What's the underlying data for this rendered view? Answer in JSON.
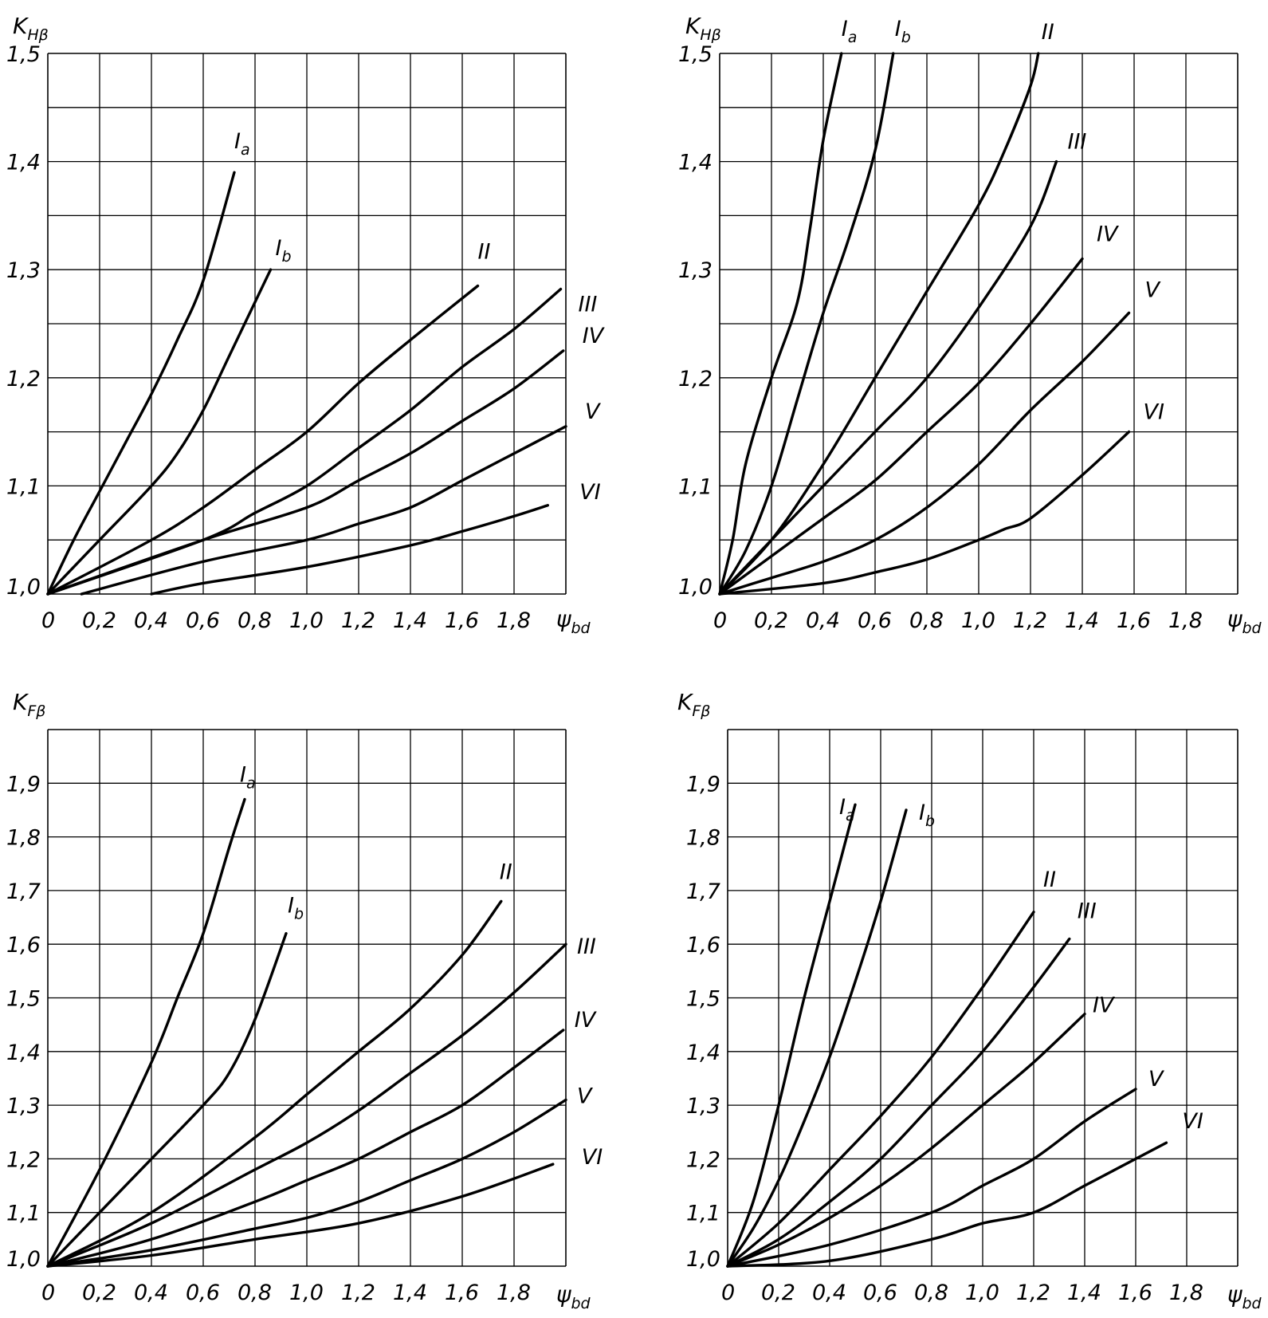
{
  "chart_data": [
    {
      "type": "line",
      "ylabel": {
        "main": "K",
        "sub": "Hβ"
      },
      "xlabel": {
        "main": "ψ",
        "sub": "bd"
      },
      "xticks": [
        "0",
        "0,2",
        "0,4",
        "0,6",
        "0,8",
        "1,0",
        "1,2",
        "1,4",
        "1,6",
        "1,8"
      ],
      "yticks": [
        "1,0",
        "1,1",
        "1,2",
        "1,3",
        "1,4",
        "1,5"
      ],
      "xlim": [
        0,
        2.0
      ],
      "ylim": [
        1.0,
        1.5
      ],
      "grid": true,
      "series": [
        {
          "name": "I",
          "sub": "a",
          "x": [
            0,
            0.1,
            0.2,
            0.3,
            0.4,
            0.5,
            0.6,
            0.72
          ],
          "y": [
            1.0,
            1.05,
            1.095,
            1.14,
            1.185,
            1.235,
            1.29,
            1.39
          ]
        },
        {
          "name": "I",
          "sub": "b",
          "x": [
            0,
            0.2,
            0.4,
            0.5,
            0.6,
            0.7,
            0.86
          ],
          "y": [
            1.0,
            1.05,
            1.1,
            1.13,
            1.17,
            1.22,
            1.3
          ]
        },
        {
          "name": "II",
          "x": [
            0,
            0.4,
            0.6,
            0.8,
            1.0,
            1.2,
            1.4,
            1.66
          ],
          "y": [
            1.0,
            1.05,
            1.08,
            1.115,
            1.15,
            1.195,
            1.235,
            1.285
          ]
        },
        {
          "name": "III",
          "x": [
            0,
            0.6,
            0.8,
            1.0,
            1.2,
            1.4,
            1.6,
            1.8,
            1.98
          ],
          "y": [
            1.0,
            1.05,
            1.075,
            1.1,
            1.135,
            1.17,
            1.21,
            1.245,
            1.282
          ]
        },
        {
          "name": "IV",
          "x": [
            0,
            0.6,
            1.0,
            1.2,
            1.4,
            1.6,
            1.8,
            1.99
          ],
          "y": [
            1.0,
            1.05,
            1.08,
            1.105,
            1.13,
            1.16,
            1.19,
            1.225
          ]
        },
        {
          "name": "V",
          "x": [
            0.13,
            0.6,
            1.0,
            1.2,
            1.4,
            1.6,
            1.8,
            2.0
          ],
          "y": [
            1.0,
            1.03,
            1.05,
            1.065,
            1.08,
            1.105,
            1.13,
            1.155
          ]
        },
        {
          "name": "VI",
          "x": [
            0.4,
            0.6,
            1.0,
            1.4,
            1.6,
            1.8,
            1.93
          ],
          "y": [
            1.0,
            1.01,
            1.025,
            1.045,
            1.058,
            1.072,
            1.082
          ]
        }
      ]
    },
    {
      "type": "line",
      "ylabel": {
        "main": "K",
        "sub": "Hβ"
      },
      "xlabel": {
        "main": "ψ",
        "sub": "bd"
      },
      "xticks": [
        "0",
        "0,2",
        "0,4",
        "0,6",
        "0,8",
        "1,0",
        "1,2",
        "1,4",
        "1,6",
        "1,8"
      ],
      "yticks": [
        "1,0",
        "1,1",
        "1,2",
        "1,3",
        "1,4",
        "1,5"
      ],
      "xlim": [
        0,
        2.0
      ],
      "ylim": [
        1.0,
        1.5
      ],
      "grid": true,
      "series": [
        {
          "name": "I",
          "sub": "a",
          "x": [
            0,
            0.05,
            0.1,
            0.2,
            0.3,
            0.35,
            0.4,
            0.47
          ],
          "y": [
            1.0,
            1.05,
            1.12,
            1.2,
            1.27,
            1.34,
            1.42,
            1.5
          ]
        },
        {
          "name": "I",
          "sub": "b",
          "x": [
            0,
            0.1,
            0.2,
            0.3,
            0.4,
            0.5,
            0.6,
            0.67
          ],
          "y": [
            1.0,
            1.04,
            1.1,
            1.18,
            1.26,
            1.33,
            1.41,
            1.5
          ]
        },
        {
          "name": "II",
          "x": [
            0,
            0.2,
            0.4,
            0.6,
            0.8,
            1.0,
            1.1,
            1.2,
            1.23
          ],
          "y": [
            1.0,
            1.05,
            1.12,
            1.2,
            1.28,
            1.36,
            1.41,
            1.47,
            1.5
          ]
        },
        {
          "name": "III",
          "x": [
            0,
            0.2,
            0.4,
            0.6,
            0.8,
            1.0,
            1.2,
            1.3
          ],
          "y": [
            1.0,
            1.05,
            1.1,
            1.15,
            1.2,
            1.265,
            1.34,
            1.4
          ]
        },
        {
          "name": "IV",
          "x": [
            0,
            0.2,
            0.4,
            0.6,
            0.8,
            1.0,
            1.2,
            1.4
          ],
          "y": [
            1.0,
            1.035,
            1.07,
            1.105,
            1.15,
            1.195,
            1.25,
            1.31
          ]
        },
        {
          "name": "V",
          "x": [
            0,
            0.2,
            0.4,
            0.6,
            0.8,
            1.0,
            1.2,
            1.4,
            1.58
          ],
          "y": [
            1.0,
            1.015,
            1.03,
            1.05,
            1.08,
            1.12,
            1.17,
            1.215,
            1.26
          ]
        },
        {
          "name": "VI",
          "x": [
            0,
            0.4,
            0.6,
            0.8,
            1.0,
            1.1,
            1.2,
            1.4,
            1.58
          ],
          "y": [
            1.0,
            1.01,
            1.02,
            1.032,
            1.05,
            1.06,
            1.07,
            1.11,
            1.15
          ]
        }
      ]
    },
    {
      "type": "line",
      "ylabel": {
        "main": "K",
        "sub": "Fβ"
      },
      "xlabel": {
        "main": "ψ",
        "sub": "bd"
      },
      "xticks": [
        "0",
        "0,2",
        "0,4",
        "0,6",
        "0,8",
        "1,0",
        "1,2",
        "1,4",
        "1,6",
        "1,8"
      ],
      "yticks": [
        "1,0",
        "1,1",
        "1,2",
        "1,3",
        "1,4",
        "1,5",
        "1,6",
        "1,7",
        "1,8",
        "1,9"
      ],
      "xlim": [
        0,
        2.0
      ],
      "ylim": [
        1.0,
        2.0
      ],
      "grid": true,
      "series": [
        {
          "name": "I",
          "sub": "a",
          "x": [
            0,
            0.2,
            0.4,
            0.5,
            0.6,
            0.7,
            0.76
          ],
          "y": [
            1.0,
            1.18,
            1.38,
            1.5,
            1.62,
            1.78,
            1.87
          ]
        },
        {
          "name": "I",
          "sub": "b",
          "x": [
            0,
            0.2,
            0.4,
            0.6,
            0.7,
            0.8,
            0.92
          ],
          "y": [
            1.0,
            1.1,
            1.2,
            1.3,
            1.36,
            1.46,
            1.62
          ]
        },
        {
          "name": "II",
          "x": [
            0,
            0.4,
            0.8,
            1.0,
            1.2,
            1.4,
            1.6,
            1.75
          ],
          "y": [
            1.0,
            1.1,
            1.24,
            1.32,
            1.4,
            1.48,
            1.58,
            1.68
          ]
        },
        {
          "name": "III",
          "x": [
            0,
            0.4,
            0.8,
            1.0,
            1.2,
            1.4,
            1.6,
            1.8,
            2.0
          ],
          "y": [
            1.0,
            1.08,
            1.18,
            1.23,
            1.29,
            1.36,
            1.43,
            1.51,
            1.6
          ]
        },
        {
          "name": "IV",
          "x": [
            0,
            0.4,
            0.8,
            1.0,
            1.2,
            1.4,
            1.6,
            1.8,
            1.99
          ],
          "y": [
            1.0,
            1.05,
            1.12,
            1.16,
            1.2,
            1.25,
            1.3,
            1.37,
            1.44
          ]
        },
        {
          "name": "V",
          "x": [
            0,
            0.4,
            0.8,
            1.0,
            1.2,
            1.4,
            1.6,
            1.8,
            2.0
          ],
          "y": [
            1.0,
            1.03,
            1.07,
            1.09,
            1.12,
            1.16,
            1.2,
            1.25,
            1.31
          ]
        },
        {
          "name": "VI",
          "x": [
            0,
            0.4,
            0.8,
            1.2,
            1.6,
            1.95
          ],
          "y": [
            1.0,
            1.02,
            1.05,
            1.08,
            1.13,
            1.19
          ]
        }
      ]
    },
    {
      "type": "line",
      "ylabel": {
        "main": "K",
        "sub": "Fβ"
      },
      "xlabel": {
        "main": "ψ",
        "sub": "bd"
      },
      "xticks": [
        "0",
        "0,2",
        "0,4",
        "0,6",
        "0,8",
        "1,0",
        "1,2",
        "1,4",
        "1,6",
        "1,8"
      ],
      "yticks": [
        "1,0",
        "1,1",
        "1,2",
        "1,3",
        "1,4",
        "1,5",
        "1,6",
        "1,7",
        "1,8",
        "1,9"
      ],
      "xlim": [
        0,
        2.0
      ],
      "ylim": [
        1.0,
        2.0
      ],
      "grid": true,
      "series": [
        {
          "name": "I",
          "sub": "a",
          "x": [
            0,
            0.1,
            0.2,
            0.3,
            0.4,
            0.5
          ],
          "y": [
            1.0,
            1.12,
            1.3,
            1.5,
            1.68,
            1.86
          ]
        },
        {
          "name": "I",
          "sub": "b",
          "x": [
            0,
            0.1,
            0.2,
            0.3,
            0.4,
            0.5,
            0.6,
            0.7
          ],
          "y": [
            1.0,
            1.07,
            1.16,
            1.27,
            1.39,
            1.53,
            1.68,
            1.85
          ]
        },
        {
          "name": "II",
          "x": [
            0,
            0.2,
            0.4,
            0.6,
            0.8,
            1.0,
            1.2
          ],
          "y": [
            1.0,
            1.08,
            1.18,
            1.28,
            1.39,
            1.52,
            1.66
          ]
        },
        {
          "name": "III",
          "x": [
            0,
            0.2,
            0.4,
            0.6,
            0.8,
            1.0,
            1.2,
            1.34
          ],
          "y": [
            1.0,
            1.05,
            1.12,
            1.2,
            1.3,
            1.4,
            1.52,
            1.61
          ]
        },
        {
          "name": "IV",
          "x": [
            0,
            0.2,
            0.4,
            0.6,
            0.8,
            1.0,
            1.2,
            1.4
          ],
          "y": [
            1.0,
            1.04,
            1.09,
            1.15,
            1.22,
            1.3,
            1.38,
            1.47
          ]
        },
        {
          "name": "V",
          "x": [
            0,
            0.4,
            0.8,
            1.0,
            1.2,
            1.4,
            1.6
          ],
          "y": [
            1.0,
            1.04,
            1.1,
            1.15,
            1.2,
            1.27,
            1.33
          ]
        },
        {
          "name": "VI",
          "x": [
            0,
            0.4,
            0.8,
            1.0,
            1.2,
            1.4,
            1.6,
            1.72
          ],
          "y": [
            1.0,
            1.01,
            1.05,
            1.08,
            1.1,
            1.15,
            1.2,
            1.23
          ]
        }
      ]
    }
  ]
}
